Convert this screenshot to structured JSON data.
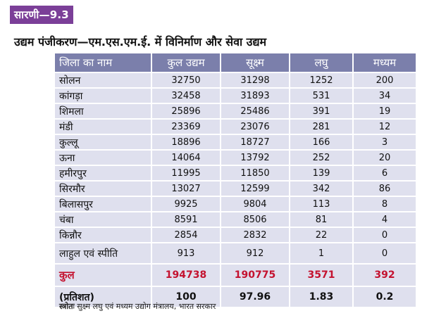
{
  "badge": "सारणी—9.3",
  "title": "उद्यम पंजीकरण—एम.एस.एम.ई. में विनिर्माण और सेवा उद्यम",
  "headers": [
    "जिला का नाम",
    "कुल उद्यम",
    "सूक्ष्म",
    "लघु",
    "मध्यम"
  ],
  "rows": [
    [
      "सोलन",
      "32750",
      "31298",
      "1252",
      "200"
    ],
    [
      "कांगड़ा",
      "32458",
      "31893",
      "531",
      "34"
    ],
    [
      "शिमला",
      "25896",
      "25486",
      "391",
      "19"
    ],
    [
      "मंडी",
      "23369",
      "23076",
      "281",
      "12"
    ],
    [
      "कुल्लू",
      "18896",
      "18727",
      "166",
      "3"
    ],
    [
      "ऊना",
      "14064",
      "13792",
      "252",
      "20"
    ],
    [
      "हमीरपुर",
      "11995",
      "11850",
      "139",
      "6"
    ],
    [
      "सिरमौर",
      "13027",
      "12599",
      "342",
      "86"
    ],
    [
      "बिलासपुर",
      "9925",
      "9804",
      "113",
      "8"
    ],
    [
      "चंबा",
      "8591",
      "8506",
      "81",
      "4"
    ],
    [
      "किन्नौर",
      "2854",
      "2832",
      "22",
      "0"
    ],
    [
      "लाहुल एवं स्पीति",
      "913",
      "912",
      "1",
      "0"
    ]
  ],
  "total": [
    "कुल",
    "194738",
    "190775",
    "3571",
    "392"
  ],
  "percent": [
    "(प्रतिशत)",
    "100",
    "97.96",
    "1.83",
    "0.2"
  ],
  "source": {
    "label": "स्त्रोतः",
    "text": "सुक्ष्म लघु एवं मध्यम उद्योग मंत्रालय, भारत सरकार"
  },
  "colors": {
    "badge": "#7b3f98",
    "header": "#7b7fab",
    "row": "#dfe0ee",
    "total_text": "#c4122f"
  }
}
